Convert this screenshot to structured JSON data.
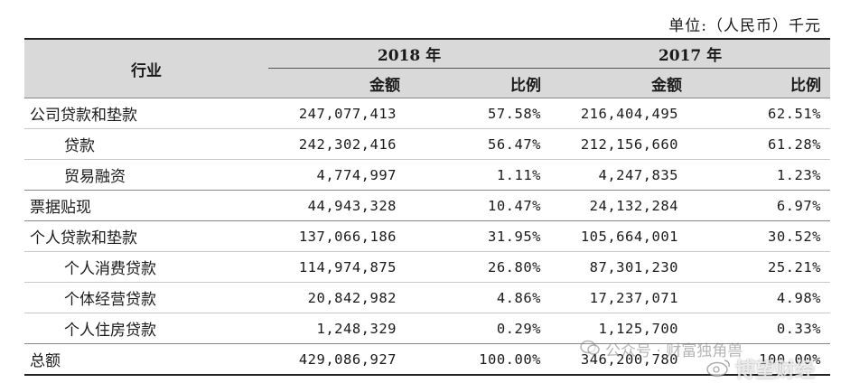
{
  "unit_label": "单位:（人民币）千元",
  "header": {
    "industry": "行业",
    "year_2018": "2018 年",
    "year_2017": "2017 年",
    "amount": "金额",
    "ratio": "比例"
  },
  "rows": [
    {
      "label": "公司贷款和垫款",
      "a2018": "247,077,413",
      "r2018": "57.58%",
      "a2017": "216,404,495",
      "r2017": "62.51%"
    },
    {
      "label": "贷款",
      "a2018": "242,302,416",
      "r2018": "56.47%",
      "a2017": "212,156,660",
      "r2017": "61.28%"
    },
    {
      "label": "贸易融资",
      "a2018": "4,774,997",
      "r2018": "1.11%",
      "a2017": "4,247,835",
      "r2017": "1.23%"
    },
    {
      "label": "票据贴现",
      "a2018": "44,943,328",
      "r2018": "10.47%",
      "a2017": "24,132,284",
      "r2017": "6.97%"
    },
    {
      "label": "个人贷款和垫款",
      "a2018": "137,066,186",
      "r2018": "31.95%",
      "a2017": "105,664,001",
      "r2017": "30.52%"
    },
    {
      "label": "个人消费贷款",
      "a2018": "114,974,875",
      "r2018": "26.80%",
      "a2017": "87,301,230",
      "r2017": "25.21%"
    },
    {
      "label": "个体经营贷款",
      "a2018": "20,842,982",
      "r2018": "4.86%",
      "a2017": "17,237,071",
      "r2017": "4.98%"
    },
    {
      "label": "个人住房贷款",
      "a2018": "1,248,329",
      "r2018": "0.29%",
      "a2017": "1,125,700",
      "r2017": "0.33%"
    },
    {
      "label": "总额",
      "a2018": "429,086,927",
      "r2018": "100.00%",
      "a2017": "346,200,780",
      "r2017": "100.00%"
    }
  ],
  "watermark": {
    "text": "公众号 · 财富独角兽",
    "brand": "博望财经"
  }
}
